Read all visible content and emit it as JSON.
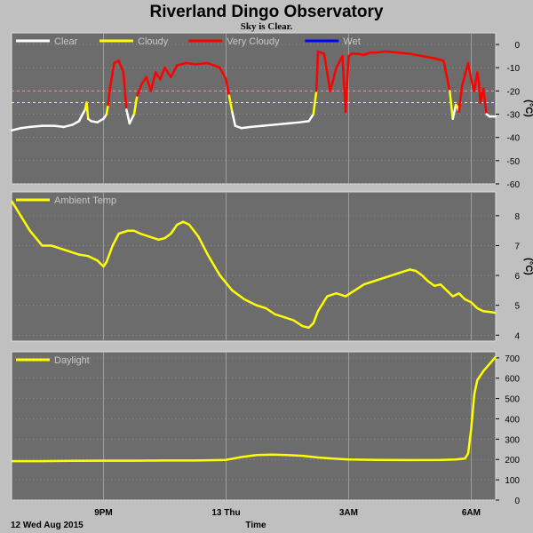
{
  "title": "Riverland Dingo Observatory",
  "subtitle": "Sky is Clear.",
  "date_label": "12 Wed Aug 2015",
  "x_axis_label": "Time",
  "x_ticks": [
    "9PM",
    "13 Thu",
    "3AM",
    "6AM"
  ],
  "colors": {
    "background": "#c0c0c0",
    "panel": "#6c6c6c",
    "grid": "#a8a8a8",
    "clear": "#ffffff",
    "cloudy": "#ffff00",
    "very_cloudy": "#ff0000",
    "wet": "#0000ff",
    "ambient": "#ffff00",
    "daylight": "#ffff00",
    "threshold_1": "#ff9090",
    "threshold_2": "#ffff60"
  },
  "chart_data": [
    {
      "type": "line",
      "name": "sky",
      "unit": "(°C)",
      "ylim": [
        -60,
        5
      ],
      "yticks": [
        0,
        -10,
        -20,
        -30,
        -40,
        -50,
        -60
      ],
      "thresholds": [
        -20,
        -25
      ],
      "legend": [
        {
          "label": "Clear",
          "color_key": "clear"
        },
        {
          "label": "Cloudy",
          "color_key": "cloudy"
        },
        {
          "label": "Very Cloudy",
          "color_key": "very_cloudy"
        },
        {
          "label": "Wet",
          "color_key": "wet"
        }
      ],
      "x": [
        0.0,
        0.3,
        0.6,
        1.0,
        1.4,
        1.7,
        2.0,
        2.2,
        2.4,
        2.45,
        2.5,
        2.6,
        2.8,
        3.0,
        3.1,
        3.15,
        3.2,
        3.35,
        3.5,
        3.65,
        3.75,
        3.85,
        4.0,
        4.1,
        4.25,
        4.4,
        4.55,
        4.7,
        4.85,
        5.0,
        5.2,
        5.4,
        5.7,
        6.0,
        6.4,
        6.8,
        7.0,
        7.1,
        7.2,
        7.3,
        7.5,
        7.8,
        8.2,
        8.6,
        9.0,
        9.4,
        9.7,
        9.85,
        9.95,
        10.0,
        10.2,
        10.4,
        10.6,
        10.8,
        10.9,
        11.0,
        11.1,
        11.3,
        11.5,
        11.7,
        11.9,
        12.2,
        12.6,
        13.0,
        13.4,
        13.8,
        14.1,
        14.3,
        14.4,
        14.5,
        14.55,
        14.6,
        14.7,
        14.8,
        14.9,
        15.0,
        15.1,
        15.2,
        15.25,
        15.3,
        15.4,
        15.5,
        15.6,
        15.8
      ],
      "y": [
        -37,
        -36,
        -35.5,
        -35,
        -35,
        -35.5,
        -34.5,
        -33,
        -28,
        -25,
        -32,
        -33,
        -33.5,
        -32,
        -30,
        -26,
        -20,
        -8,
        -7,
        -12,
        -28,
        -34,
        -30,
        -22,
        -17,
        -14,
        -20,
        -12,
        -15,
        -10,
        -14,
        -9,
        -8,
        -8.5,
        -8,
        -10,
        -15,
        -22,
        -29,
        -35,
        -36,
        -35.5,
        -35,
        -34.5,
        -34,
        -33.5,
        -33,
        -30,
        -20,
        -3,
        -4,
        -20,
        -10,
        -5,
        -29,
        -5,
        -4,
        -4,
        -4.5,
        -3.5,
        -3.5,
        -3,
        -3.5,
        -4,
        -5,
        -6,
        -7,
        -20,
        -32,
        -26,
        -27,
        -29,
        -18,
        -13,
        -8,
        -15,
        -20,
        -12,
        -16,
        -25,
        -19,
        -30,
        -31,
        -31
      ]
    },
    {
      "type": "line",
      "name": "Ambient Temp",
      "unit": "(°C)",
      "ylim": [
        3.8,
        8.8
      ],
      "yticks": [
        8,
        7,
        6,
        5,
        4
      ],
      "legend": [
        {
          "label": "Ambient Temp",
          "color_key": "ambient"
        }
      ],
      "x": [
        0.0,
        0.3,
        0.6,
        1.0,
        1.3,
        1.6,
        1.9,
        2.2,
        2.5,
        2.8,
        3.0,
        3.1,
        3.3,
        3.5,
        3.8,
        4.0,
        4.2,
        4.5,
        4.8,
        5.0,
        5.2,
        5.4,
        5.6,
        5.8,
        6.1,
        6.4,
        6.8,
        7.2,
        7.6,
        8.0,
        8.3,
        8.6,
        8.9,
        9.2,
        9.5,
        9.7,
        9.85,
        10.0,
        10.3,
        10.6,
        10.9,
        11.2,
        11.5,
        11.8,
        12.1,
        12.4,
        12.7,
        13.0,
        13.2,
        13.4,
        13.6,
        13.8,
        14.0,
        14.2,
        14.4,
        14.6,
        14.8,
        15.0,
        15.2,
        15.4,
        15.6,
        15.8
      ],
      "y": [
        8.5,
        8.0,
        7.5,
        7.0,
        7.0,
        6.9,
        6.8,
        6.7,
        6.65,
        6.5,
        6.3,
        6.45,
        7.0,
        7.4,
        7.5,
        7.5,
        7.4,
        7.3,
        7.2,
        7.25,
        7.4,
        7.7,
        7.8,
        7.7,
        7.3,
        6.7,
        6.0,
        5.5,
        5.2,
        5.0,
        4.9,
        4.7,
        4.6,
        4.5,
        4.3,
        4.25,
        4.4,
        4.8,
        5.3,
        5.4,
        5.3,
        5.5,
        5.7,
        5.8,
        5.9,
        6.0,
        6.1,
        6.2,
        6.15,
        6.0,
        5.8,
        5.65,
        5.7,
        5.5,
        5.3,
        5.4,
        5.2,
        5.1,
        4.9,
        4.8,
        4.78,
        4.75
      ]
    },
    {
      "type": "line",
      "name": "Daylight",
      "ylim": [
        0,
        730
      ],
      "yticks": [
        700,
        600,
        500,
        400,
        300,
        200,
        100,
        0
      ],
      "legend": [
        {
          "label": "Daylight",
          "color_key": "daylight"
        }
      ],
      "x": [
        0.0,
        1.0,
        2.0,
        3.0,
        4.0,
        5.0,
        6.0,
        7.0,
        7.5,
        8.0,
        8.5,
        9.0,
        9.5,
        10.0,
        10.5,
        11.0,
        12.0,
        13.0,
        14.0,
        14.5,
        14.8,
        14.9,
        15.0,
        15.1,
        15.2,
        15.4,
        15.6,
        15.8
      ],
      "y": [
        192,
        192,
        193,
        194,
        194,
        195,
        195,
        198,
        212,
        222,
        224,
        222,
        218,
        210,
        204,
        200,
        198,
        197,
        198,
        200,
        205,
        230,
        350,
        520,
        590,
        635,
        670,
        705
      ]
    }
  ]
}
